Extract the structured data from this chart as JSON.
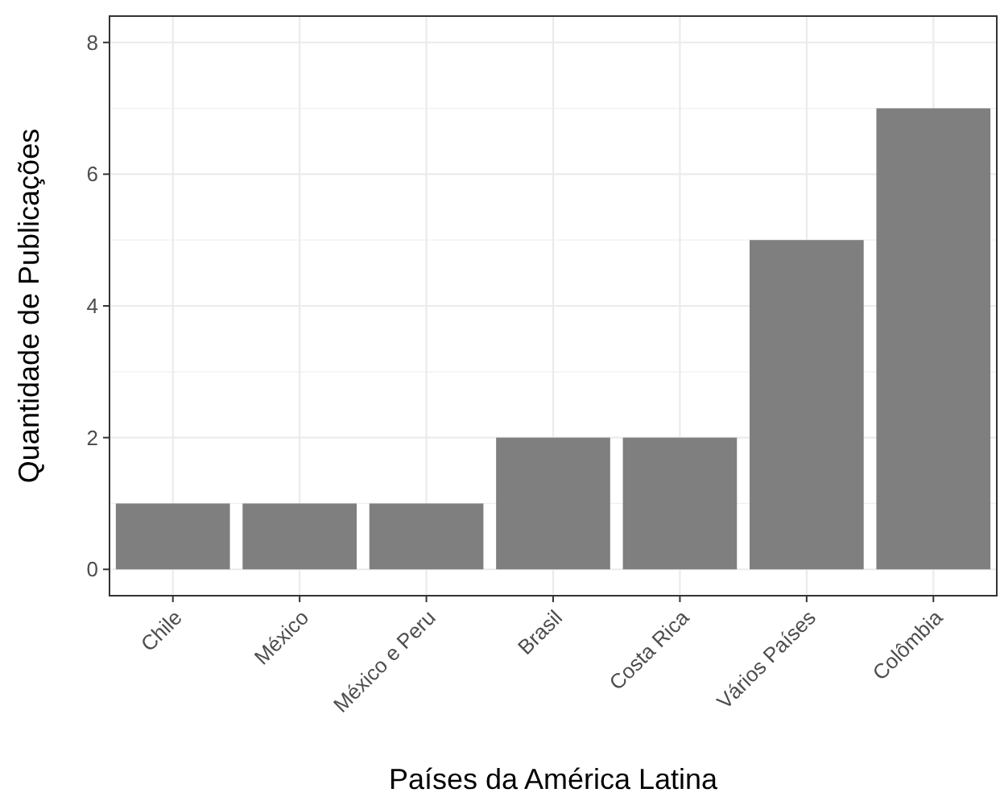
{
  "chart_data": {
    "type": "bar",
    "xlabel": "Países da América Latina",
    "ylabel": "Quantidade de Publicações",
    "categories": [
      "Chile",
      "México",
      "México e Peru",
      "Brasil",
      "Costa Rica",
      "Vários Países",
      "Colômbia"
    ],
    "values": [
      1,
      1,
      1,
      2,
      2,
      5,
      7
    ],
    "color": "#7f7f7f",
    "ylim": [
      -0.4,
      8.4
    ],
    "yticks": [
      0,
      2,
      4,
      6,
      8
    ],
    "grid": true
  }
}
